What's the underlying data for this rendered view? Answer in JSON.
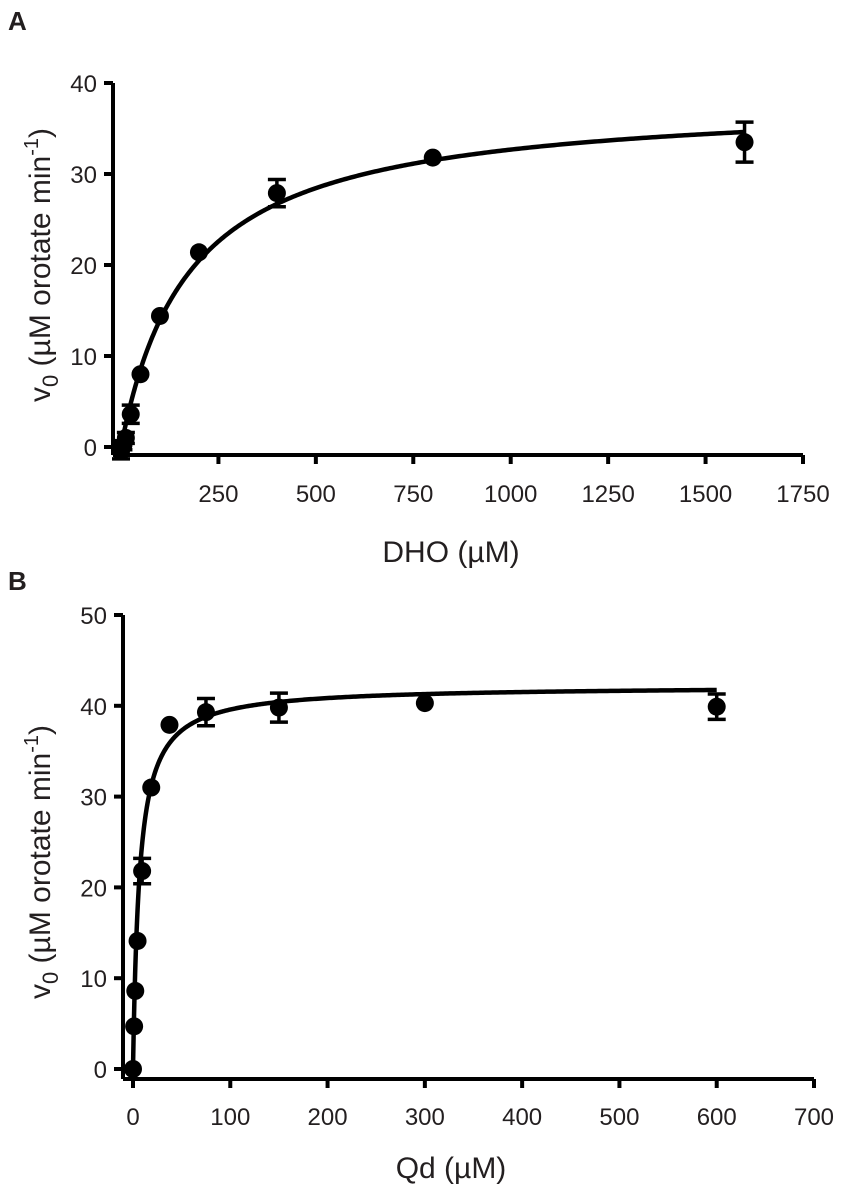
{
  "chart_data": [
    {
      "panel": "A",
      "type": "scatter",
      "xlabel": "DHO (µM)",
      "ylabel_main": "v",
      "ylabel_sub": "0",
      "ylabel_rest": " (µM orotate min",
      "ylabel_sup": "-1",
      "ylabel_close": ")",
      "xlim": [
        0,
        1750
      ],
      "ylim": [
        0,
        40
      ],
      "xticks": [
        250,
        500,
        750,
        1000,
        1250,
        1500,
        1750
      ],
      "yticks": [
        0,
        10,
        20,
        30,
        40
      ],
      "grid": false,
      "series": [
        {
          "points": [
            {
              "x": 0,
              "y": -0.5,
              "err": 0.8
            },
            {
              "x": 6.25,
              "y": 0.2,
              "err": 0.5
            },
            {
              "x": 12.5,
              "y": 1.0,
              "err": 0.6
            },
            {
              "x": 25,
              "y": 3.6,
              "err": 1.0
            },
            {
              "x": 50,
              "y": 8.0,
              "err": 0
            },
            {
              "x": 100,
              "y": 14.4,
              "err": 0
            },
            {
              "x": 200,
              "y": 21.4,
              "err": 0
            },
            {
              "x": 400,
              "y": 27.9,
              "err": 1.5
            },
            {
              "x": 800,
              "y": 31.8,
              "err": 0
            },
            {
              "x": 1600,
              "y": 33.5,
              "err": 2.2
            }
          ],
          "fit": {
            "model": "michaelis-menten",
            "vmax": 38.4,
            "km": 175,
            "xmax": 1600
          }
        }
      ]
    },
    {
      "panel": "B",
      "type": "scatter",
      "xlabel": "Qd (µM)",
      "ylabel_main": "v",
      "ylabel_sub": "0",
      "ylabel_rest": " (µM orotate min",
      "ylabel_sup": "-1",
      "ylabel_close": ")",
      "xlim": [
        0,
        700
      ],
      "ylim": [
        0,
        50
      ],
      "xticks": [
        0,
        100,
        200,
        300,
        400,
        500,
        600,
        700
      ],
      "yticks": [
        0,
        10,
        20,
        30,
        40,
        50
      ],
      "grid": false,
      "series": [
        {
          "points": [
            {
              "x": 0,
              "y": 0,
              "err": 0
            },
            {
              "x": 1.17,
              "y": 4.7,
              "err": 0
            },
            {
              "x": 2.34,
              "y": 8.6,
              "err": 0
            },
            {
              "x": 4.69,
              "y": 14.1,
              "err": 0
            },
            {
              "x": 9.38,
              "y": 21.8,
              "err": 1.4
            },
            {
              "x": 18.75,
              "y": 31.0,
              "err": 0
            },
            {
              "x": 37.5,
              "y": 37.9,
              "err": 0
            },
            {
              "x": 75,
              "y": 39.3,
              "err": 1.5
            },
            {
              "x": 150,
              "y": 39.8,
              "err": 1.6
            },
            {
              "x": 300,
              "y": 40.3,
              "err": 0
            },
            {
              "x": 600,
              "y": 39.9,
              "err": 1.4
            }
          ],
          "fit": {
            "model": "michaelis-menten",
            "vmax": 42.2,
            "km": 6.6,
            "xmax": 600
          }
        }
      ]
    }
  ]
}
